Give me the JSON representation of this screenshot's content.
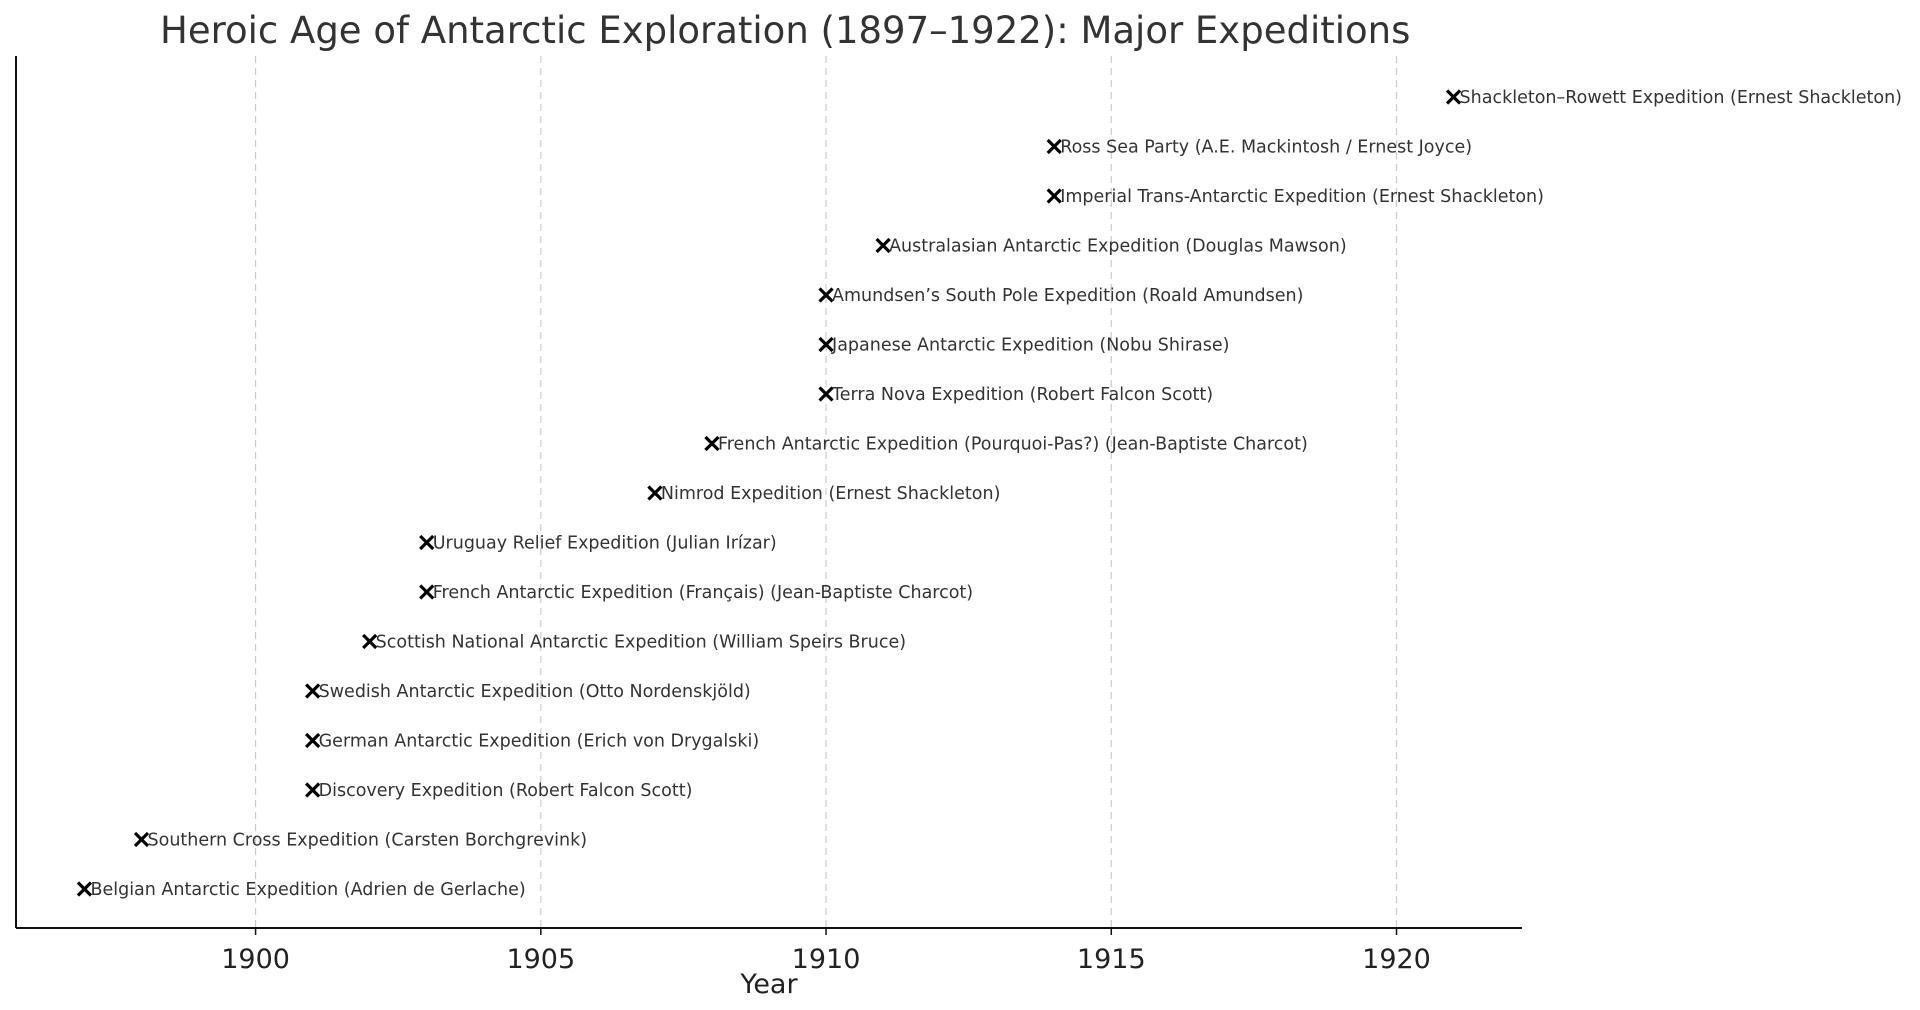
{
  "chart_data": {
    "type": "scatter",
    "title": "Heroic Age of Antarctic Exploration (1897–1922): Major Expeditions",
    "xlabel": "Year",
    "ylabel": "",
    "xlim": [
      1895.8,
      1922.2
    ],
    "xticks": [
      1900,
      1905,
      1910,
      1915,
      1920
    ],
    "grid": "x-axis, dashed",
    "marker": "x",
    "marker_color": "#000000",
    "points": [
      {
        "x": 1897,
        "label": "Belgian Antarctic Expedition (Adrien de Gerlache)"
      },
      {
        "x": 1898,
        "label": "Southern Cross Expedition (Carsten Borchgrevink)"
      },
      {
        "x": 1901,
        "label": "Discovery Expedition (Robert Falcon Scott)"
      },
      {
        "x": 1901,
        "label": "German Antarctic Expedition (Erich von Drygalski)"
      },
      {
        "x": 1901,
        "label": "Swedish Antarctic Expedition (Otto Nordenskjöld)"
      },
      {
        "x": 1902,
        "label": "Scottish National Antarctic Expedition (William Speirs Bruce)"
      },
      {
        "x": 1903,
        "label": "French Antarctic Expedition (Français) (Jean-Baptiste Charcot)"
      },
      {
        "x": 1903,
        "label": "Uruguay Relief Expedition (Julian Irízar)"
      },
      {
        "x": 1907,
        "label": "Nimrod Expedition (Ernest Shackleton)"
      },
      {
        "x": 1908,
        "label": "French Antarctic Expedition (Pourquoi-Pas?) (Jean-Baptiste Charcot)"
      },
      {
        "x": 1910,
        "label": "Terra Nova Expedition (Robert Falcon Scott)"
      },
      {
        "x": 1910,
        "label": "Japanese Antarctic Expedition (Nobu Shirase)"
      },
      {
        "x": 1910,
        "label": "Amundsen’s South Pole Expedition (Roald Amundsen)"
      },
      {
        "x": 1911,
        "label": "Australasian Antarctic Expedition (Douglas Mawson)"
      },
      {
        "x": 1914,
        "label": "Imperial Trans-Antarctic Expedition (Ernest Shackleton)"
      },
      {
        "x": 1914,
        "label": "Ross Sea Party (A.E. Mackintosh / Ernest Joyce)"
      },
      {
        "x": 1921,
        "label": "Shackleton–Rowett Expedition (Ernest Shackleton)"
      }
    ]
  }
}
